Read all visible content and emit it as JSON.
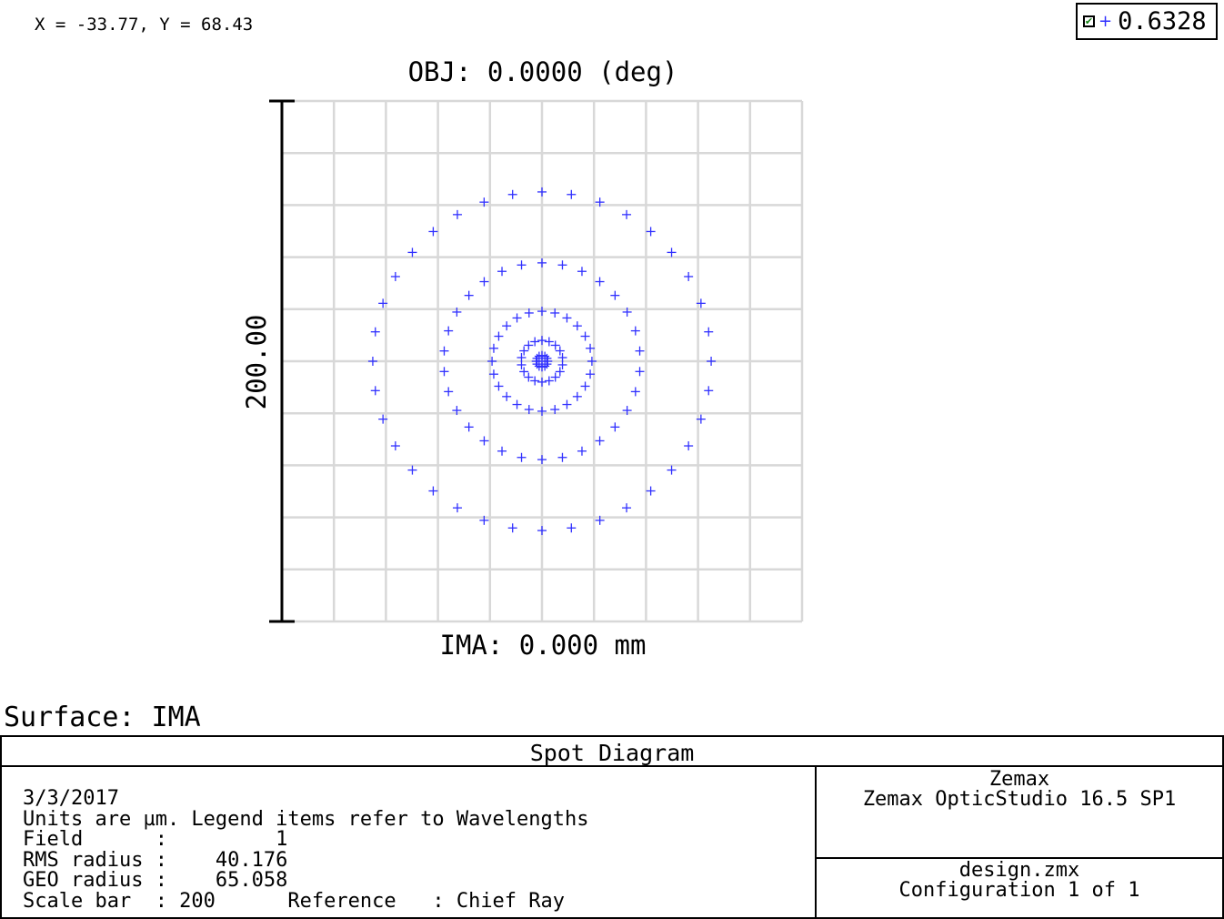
{
  "cursor_readout": "X = -33.77, Y = 68.43",
  "legend": {
    "label": "0.6328",
    "checked": true,
    "marker_color": "#3030ff"
  },
  "surface_label": "Surface: IMA",
  "info": {
    "title": "Spot Diagram",
    "date": "3/3/2017",
    "units_line": "Units are µm. Legend items refer to Wavelengths",
    "field_line": "Field      :         1",
    "rms_line": "RMS radius :    40.176",
    "geo_line": "GEO radius :    65.058",
    "scale_line": "Scale bar  : 200      Reference   : Chief Ray",
    "company": "Zemax",
    "product": "Zemax OpticStudio 16.5 SP1",
    "file": "design.zmx",
    "configuration": "Configuration 1 of 1"
  },
  "colors": {
    "grid": "#d8d8d8",
    "spot": "#3030ff",
    "text": "#000000"
  },
  "chart_data": {
    "type": "scatter",
    "title": "OBJ: 0.0000 (deg)",
    "xlabel": "IMA: 0.000 mm",
    "scale_bar_label": "200.00",
    "scale_bar": 200,
    "xlim": [
      -100,
      100
    ],
    "ylim": [
      -100,
      100
    ],
    "grid": true,
    "grid_divisions": 10,
    "units": "µm",
    "rings": [
      {
        "radius": 65.058,
        "count": 36
      },
      {
        "radius": 37.8,
        "count": 30
      },
      {
        "radius": 19.2,
        "count": 24
      },
      {
        "radius": 8.0,
        "count": 18
      },
      {
        "radius": 2.2,
        "count": 12
      }
    ],
    "center_point": [
      0,
      0
    ],
    "series": [
      {
        "name": "0.6328",
        "color": "#3030ff"
      }
    ]
  }
}
